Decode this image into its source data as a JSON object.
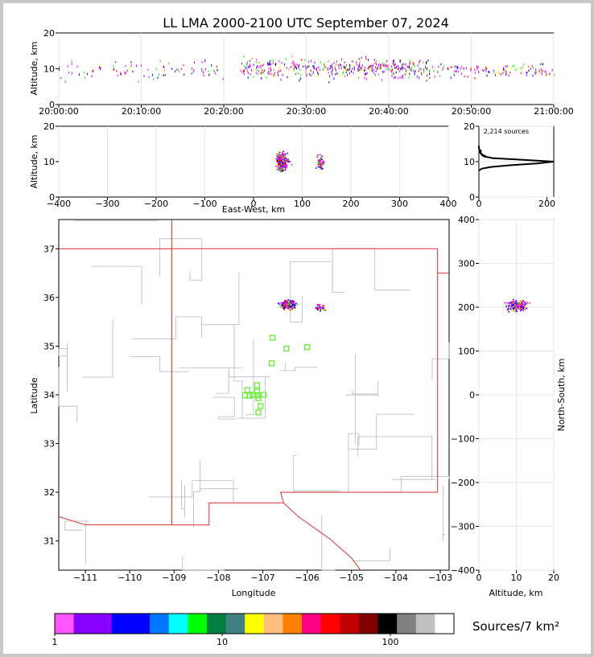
{
  "title": "LL LMA 2000-2100 UTC September 07, 2024",
  "sources_label": "2,214 sources",
  "colorbar_label": "Sources/7 km²",
  "chart_data": [
    {
      "id": "time_altitude",
      "type": "scatter",
      "ylabel": "Altitude, km",
      "ylim": [
        0,
        20
      ],
      "yticks": [
        "0",
        "10",
        "20"
      ],
      "xlim": [
        "20:00:00",
        "21:00:00"
      ],
      "xticks": [
        "20:00:00",
        "20:10:00",
        "20:20:00",
        "20:30:00",
        "20:40:00",
        "20:50:00",
        "21:00:00"
      ],
      "clusters": [
        {
          "t0": 0.0,
          "t1": 20.0,
          "alt_mean": 9.7,
          "alt_spread": 1.1,
          "count": 90
        },
        {
          "t0": 22.0,
          "t1": 45.0,
          "alt_mean": 10.4,
          "alt_spread": 1.3,
          "count": 420
        },
        {
          "t0": 45.0,
          "t1": 60.0,
          "alt_mean": 9.8,
          "alt_spread": 0.9,
          "count": 120
        }
      ]
    },
    {
      "id": "eastwest_altitude",
      "type": "scatter",
      "xlabel": "East-West, km",
      "ylabel": "Altitude, km",
      "xlim": [
        -400,
        400
      ],
      "ylim": [
        0,
        20
      ],
      "xticks": [
        "−400",
        "−300",
        "−200",
        "−100",
        "0",
        "100",
        "200",
        "300",
        "400"
      ],
      "yticks": [
        "0",
        "10",
        "20"
      ],
      "clusters": [
        {
          "x_mean": 58,
          "x_spread": 6,
          "alt_mean": 10,
          "alt_spread": 1.2,
          "count": 260
        },
        {
          "x_mean": 137,
          "x_spread": 4,
          "alt_mean": 9.8,
          "alt_spread": 1.0,
          "count": 80
        }
      ]
    },
    {
      "id": "altitude_histogram",
      "type": "line",
      "xlim": [
        0,
        220
      ],
      "ylim": [
        0,
        20
      ],
      "xticks": [
        "0",
        "200"
      ],
      "yticks": [
        "0",
        "10",
        "20"
      ],
      "alt": [
        7.5,
        8,
        8.5,
        9,
        9.5,
        10,
        10.5,
        11,
        11.5,
        12,
        12.5,
        13,
        13.5,
        14,
        14.5
      ],
      "count": [
        0,
        8,
        35,
        95,
        170,
        220,
        130,
        40,
        14,
        8,
        4,
        6,
        1,
        0,
        0
      ]
    },
    {
      "id": "plan_view",
      "type": "scatter",
      "xlabel": "Longitude",
      "ylabel": "Latitude",
      "xlim": [
        -111.6,
        -102.8
      ],
      "ylim": [
        30.4,
        37.6
      ],
      "xticks": [
        "−111",
        "−110",
        "−109",
        "−108",
        "−107",
        "−106",
        "−105",
        "−104",
        "−103"
      ],
      "yticks": [
        "31",
        "32",
        "33",
        "34",
        "35",
        "36",
        "37"
      ],
      "clusters": [
        {
          "lon_mean": -106.45,
          "lon_spread": 0.08,
          "lat_mean": 35.87,
          "lat_spread": 0.04,
          "count": 200
        },
        {
          "lon_mean": -105.72,
          "lon_spread": 0.05,
          "lat_mean": 35.8,
          "lat_spread": 0.03,
          "count": 40
        }
      ],
      "stations": [
        [
          -106.78,
          35.17
        ],
        [
          -106.47,
          34.95
        ],
        [
          -106.0,
          34.98
        ],
        [
          -106.8,
          34.65
        ],
        [
          -107.35,
          34.1
        ],
        [
          -107.13,
          34.2
        ],
        [
          -107.13,
          34.07
        ],
        [
          -107.4,
          33.99
        ],
        [
          -107.3,
          33.98
        ],
        [
          -107.22,
          34.0
        ],
        [
          -107.12,
          33.99
        ],
        [
          -107.1,
          33.93
        ],
        [
          -106.98,
          34.0
        ],
        [
          -107.05,
          33.77
        ],
        [
          -107.1,
          33.64
        ]
      ]
    },
    {
      "id": "altitude_northsouth",
      "type": "scatter",
      "xlabel": "Altitude, km",
      "ylabel": "North-South, km",
      "xlim": [
        0,
        20
      ],
      "ylim": [
        -400,
        400
      ],
      "xticks": [
        "0",
        "10",
        "20"
      ],
      "yticks": [
        "−400",
        "−300",
        "−200",
        "−100",
        "0",
        "100",
        "200",
        "300",
        "400"
      ],
      "clusters": [
        {
          "alt_mean": 10.2,
          "alt_spread": 1.3,
          "ns_mean": 205,
          "ns_spread": 6,
          "count": 220
        }
      ]
    },
    {
      "id": "colorbar",
      "type": "heatmap",
      "ticks": [
        "1",
        "10",
        "100"
      ],
      "colors": [
        "#ff55ff",
        "#8800ff",
        "#8800ff",
        "#0000ff",
        "#0000ff",
        "#0077ff",
        "#00ffff",
        "#00ff00",
        "#008040",
        "#408080",
        "#ffff00",
        "#ffc080",
        "#ff8000",
        "#ff0080",
        "#ff0000",
        "#c00000",
        "#800000",
        "#000000",
        "#808080",
        "#c0c0c0",
        "#ffffff"
      ]
    }
  ]
}
